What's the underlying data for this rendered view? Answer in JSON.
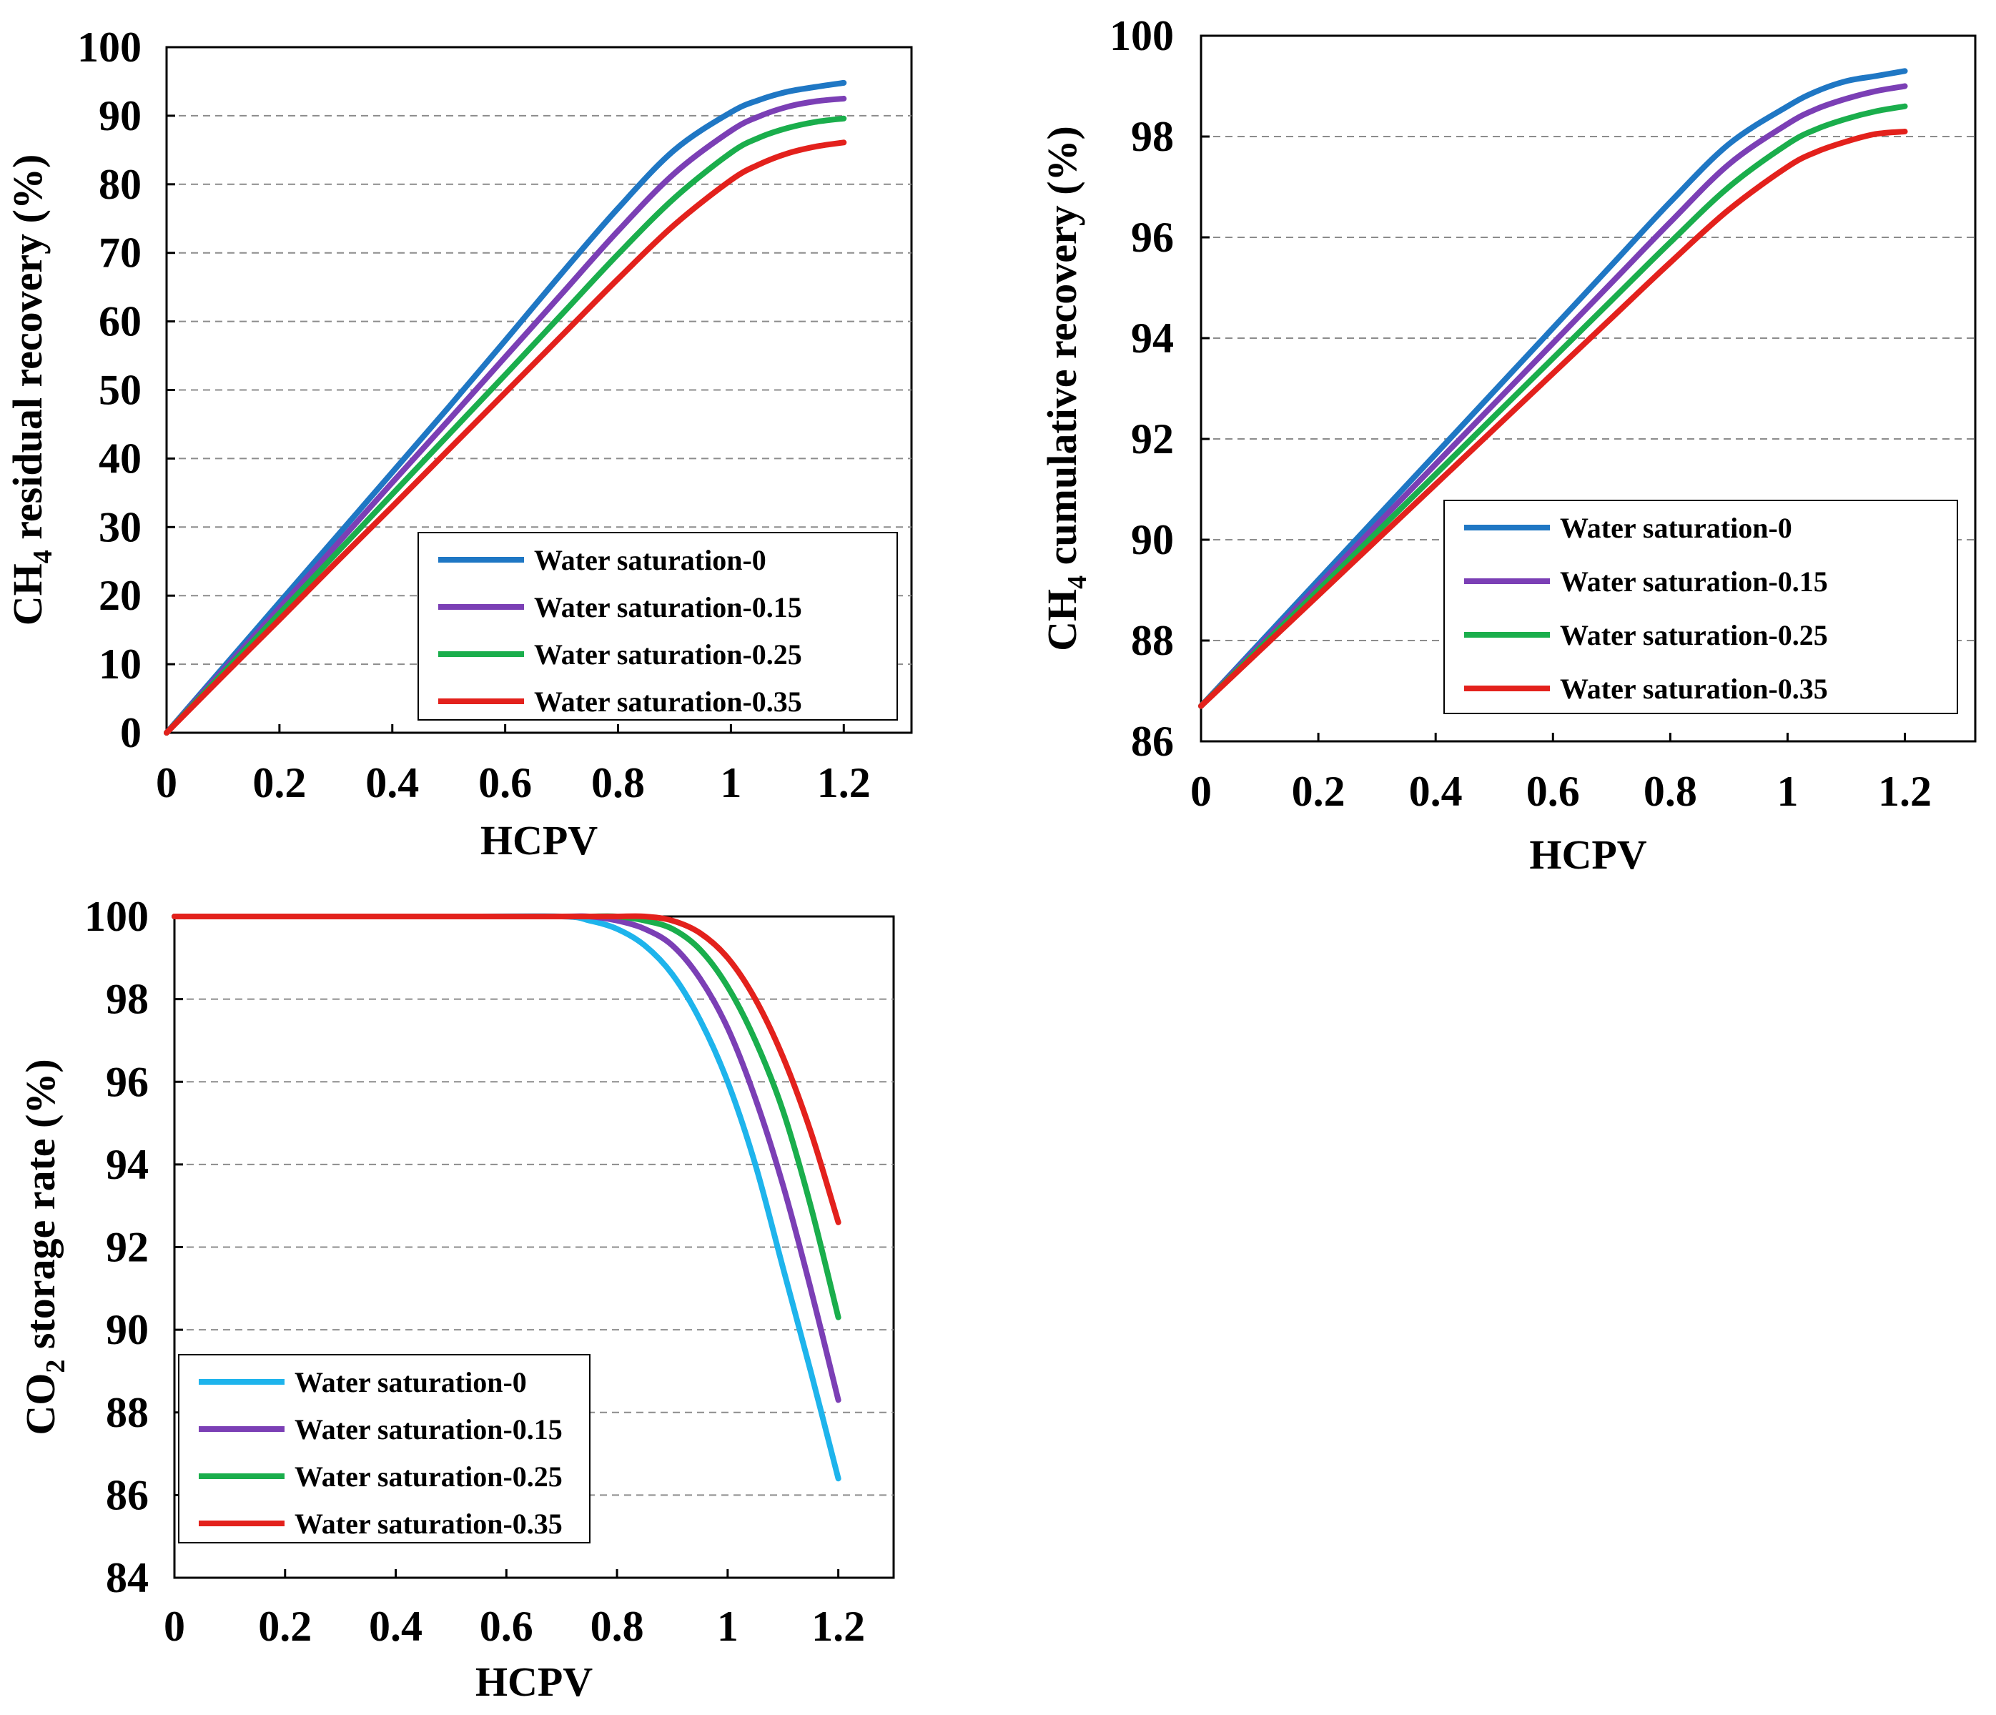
{
  "chart_data": [
    {
      "id": "panel-a",
      "type": "line",
      "title": "",
      "xlabel": "HCPV",
      "ylabel": {
        "prefix": "CH",
        "sub": "4",
        "suffix": " residual recovery (%)"
      },
      "xlim": [
        0,
        1.32
      ],
      "ylim": [
        0,
        100
      ],
      "xticks": [
        0,
        0.2,
        0.4,
        0.6,
        0.8,
        1,
        1.2
      ],
      "xtick_labels": [
        "0",
        "0.2",
        "0.4",
        "0.6",
        "0.8",
        "1",
        "1.2"
      ],
      "yticks": [
        0,
        10,
        20,
        30,
        40,
        50,
        60,
        70,
        80,
        90,
        100
      ],
      "ytick_labels": [
        "0",
        "10",
        "20",
        "30",
        "40",
        "50",
        "60",
        "70",
        "80",
        "90",
        "100"
      ],
      "grid": "horizontal-dashed",
      "legend_position": "bottom-right",
      "x": [
        0,
        0.1,
        0.2,
        0.3,
        0.4,
        0.5,
        0.6,
        0.7,
        0.8,
        0.9,
        1.0,
        1.05,
        1.1,
        1.15,
        1.2
      ],
      "series": [
        {
          "name": "Water saturation-0",
          "color": "#1f77c4",
          "values": [
            0,
            9.5,
            19,
            28.5,
            38,
            47.5,
            57.2,
            67,
            76.5,
            85,
            90.5,
            92.3,
            93.5,
            94.2,
            94.8
          ]
        },
        {
          "name": "Water saturation-0.15",
          "color": "#7b3fb5",
          "values": [
            0,
            9.1,
            18.2,
            27.3,
            36.5,
            45.6,
            54.8,
            64,
            73.2,
            81.6,
            87.8,
            89.9,
            91.3,
            92.1,
            92.5
          ]
        },
        {
          "name": "Water saturation-0.25",
          "color": "#1aae4c",
          "values": [
            0,
            8.7,
            17.4,
            26.1,
            34.8,
            43.5,
            52.2,
            61,
            69.8,
            78,
            84.6,
            86.8,
            88.2,
            89.1,
            89.6
          ]
        },
        {
          "name": "Water saturation-0.35",
          "color": "#e3211c",
          "values": [
            0,
            8.3,
            16.5,
            24.8,
            33,
            41.3,
            49.6,
            57.9,
            66.2,
            74.1,
            80.6,
            82.9,
            84.5,
            85.5,
            86.1
          ]
        }
      ]
    },
    {
      "id": "panel-b",
      "type": "line",
      "title": "",
      "xlabel": "HCPV",
      "ylabel": {
        "prefix": "CH",
        "sub": "4",
        "suffix": " cumulative  recovery (%)"
      },
      "xlim": [
        0,
        1.32
      ],
      "ylim": [
        86,
        100
      ],
      "xticks": [
        0,
        0.2,
        0.4,
        0.6,
        0.8,
        1,
        1.2
      ],
      "xtick_labels": [
        "0",
        "0.2",
        "0.4",
        "0.6",
        "0.8",
        "1",
        "1.2"
      ],
      "yticks": [
        86,
        88,
        90,
        92,
        94,
        96,
        98,
        100
      ],
      "ytick_labels": [
        "86",
        "88",
        "90",
        "92",
        "94",
        "96",
        "98",
        "100"
      ],
      "grid": "horizontal-dashed",
      "legend_position": "bottom-right",
      "x": [
        0,
        0.1,
        0.2,
        0.3,
        0.4,
        0.5,
        0.6,
        0.7,
        0.8,
        0.9,
        1.0,
        1.05,
        1.1,
        1.15,
        1.2
      ],
      "series": [
        {
          "name": "Water saturation-0",
          "color": "#1f77c4",
          "values": [
            86.7,
            87.95,
            89.2,
            90.45,
            91.7,
            92.95,
            94.2,
            95.45,
            96.7,
            97.85,
            98.6,
            98.9,
            99.1,
            99.2,
            99.3
          ]
        },
        {
          "name": "Water saturation-0.15",
          "color": "#7b3fb5",
          "values": [
            86.7,
            87.9,
            89.1,
            90.3,
            91.5,
            92.7,
            93.9,
            95.1,
            96.3,
            97.45,
            98.25,
            98.55,
            98.75,
            98.9,
            99.0
          ]
        },
        {
          "name": "Water saturation-0.25",
          "color": "#1aae4c",
          "values": [
            86.7,
            87.85,
            89.0,
            90.15,
            91.3,
            92.45,
            93.6,
            94.75,
            95.9,
            97.0,
            97.85,
            98.15,
            98.35,
            98.5,
            98.6
          ]
        },
        {
          "name": "Water saturation-0.35",
          "color": "#e3211c",
          "values": [
            86.7,
            87.8,
            88.9,
            90.0,
            91.1,
            92.2,
            93.3,
            94.4,
            95.5,
            96.55,
            97.4,
            97.7,
            97.9,
            98.05,
            98.1
          ]
        }
      ]
    },
    {
      "id": "panel-c",
      "type": "line",
      "title": "",
      "xlabel": "HCPV",
      "ylabel": {
        "prefix": "CO",
        "sub": "2",
        "suffix": " storage rate (%)"
      },
      "xlim": [
        0,
        1.3
      ],
      "ylim": [
        84,
        100
      ],
      "xticks": [
        0,
        0.2,
        0.4,
        0.6,
        0.8,
        1,
        1.2
      ],
      "xtick_labels": [
        "0",
        "0.2",
        "0.4",
        "0.6",
        "0.8",
        "1",
        "1.2"
      ],
      "yticks": [
        84,
        86,
        88,
        90,
        92,
        94,
        96,
        98,
        100
      ],
      "ytick_labels": [
        "84",
        "86",
        "88",
        "90",
        "92",
        "94",
        "96",
        "98",
        "100"
      ],
      "grid": "horizontal-dashed",
      "legend_position": "bottom-left",
      "x": [
        0,
        0.5,
        0.7,
        0.75,
        0.8,
        0.85,
        0.9,
        0.95,
        1.0,
        1.05,
        1.1,
        1.15,
        1.2
      ],
      "series": [
        {
          "name": "Water saturation-0",
          "color": "#1eb4ec",
          "values": [
            100,
            100,
            100,
            99.9,
            99.7,
            99.3,
            98.6,
            97.5,
            96.0,
            94.0,
            91.5,
            89.0,
            86.4
          ]
        },
        {
          "name": "Water saturation-0.15",
          "color": "#7b3fb5",
          "values": [
            100,
            100,
            100,
            100,
            99.9,
            99.7,
            99.3,
            98.5,
            97.3,
            95.6,
            93.5,
            91.0,
            88.3
          ]
        },
        {
          "name": "Water saturation-0.25",
          "color": "#1aae4c",
          "values": [
            100,
            100,
            100,
            100,
            100,
            99.9,
            99.7,
            99.2,
            98.3,
            97.0,
            95.3,
            93.0,
            90.3
          ]
        },
        {
          "name": "Water saturation-0.35",
          "color": "#e3211c",
          "values": [
            100,
            100,
            100,
            100,
            100,
            100,
            99.9,
            99.6,
            99.0,
            98.0,
            96.6,
            94.8,
            92.6
          ]
        }
      ]
    }
  ]
}
